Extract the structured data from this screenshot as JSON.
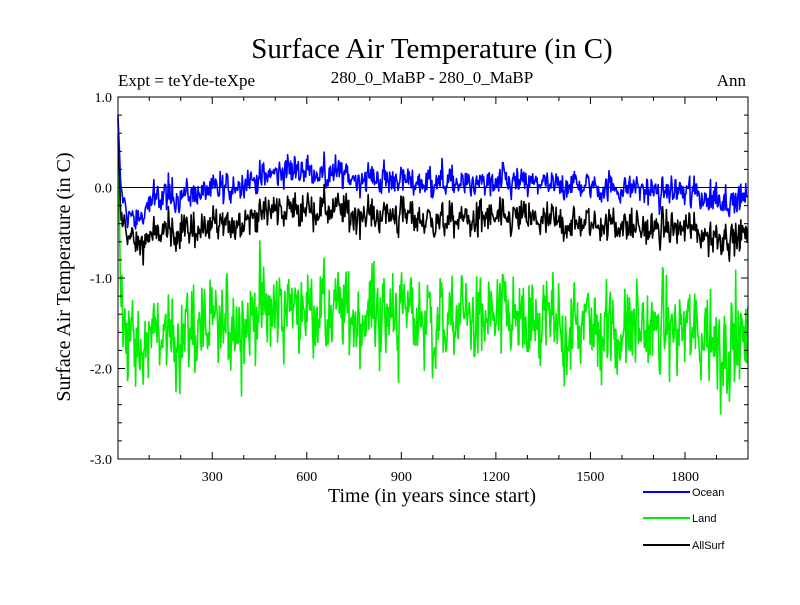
{
  "colors": {
    "ocean": "#0000ff",
    "land": "#00ee00",
    "allsurf": "#000000",
    "axis": "#000000",
    "background": "#ffffff"
  },
  "chart_data": {
    "type": "line",
    "title": "Surface Air Temperature (in C)",
    "subtitle_left": "Expt = teYde-teXpe",
    "subtitle_center": "280_0_MaBP - 280_0_MaBP",
    "subtitle_right": "Ann",
    "xlabel": "Time (in years since start)",
    "ylabel": "Surface Air Temperature (in C)",
    "xlim": [
      1,
      2000
    ],
    "ylim": [
      -3.0,
      1.0
    ],
    "xticks": [
      300,
      600,
      900,
      1200,
      1500,
      1800
    ],
    "xtick_labels": [
      "300",
      "600",
      "900",
      "1200",
      "1500",
      "1800"
    ],
    "yticks": [
      1.0,
      0.0,
      -1.0,
      -2.0,
      -3.0
    ],
    "ytick_labels": [
      "1.0",
      "0.0",
      "-1.0",
      "-2.0",
      "-3.0"
    ],
    "reference_line_y": 0.0,
    "legend_position": "bottom-right",
    "series": [
      {
        "name": "Ocean",
        "color": "#0000ff",
        "x": [
          1,
          10,
          30,
          60,
          100,
          150,
          200,
          250,
          300,
          350,
          400,
          450,
          500,
          550,
          600,
          650,
          700,
          750,
          800,
          850,
          900,
          950,
          1000,
          1050,
          1100,
          1150,
          1200,
          1250,
          1300,
          1350,
          1400,
          1450,
          1500,
          1550,
          1600,
          1650,
          1700,
          1750,
          1800,
          1850,
          1900,
          1950,
          2000
        ],
        "values": [
          0.8,
          0.0,
          -0.3,
          -0.4,
          -0.15,
          -0.1,
          -0.1,
          -0.05,
          -0.05,
          0.0,
          0.05,
          0.1,
          0.15,
          0.2,
          0.2,
          0.15,
          0.15,
          0.1,
          0.1,
          0.1,
          0.1,
          0.05,
          0.05,
          0.05,
          0.05,
          0.05,
          0.05,
          0.05,
          0.05,
          0.05,
          0.0,
          0.05,
          0.0,
          0.0,
          0.0,
          0.0,
          -0.05,
          -0.05,
          -0.05,
          -0.1,
          -0.1,
          -0.15,
          -0.1
        ]
      },
      {
        "name": "Land",
        "color": "#00ee00",
        "x": [
          1,
          10,
          30,
          60,
          100,
          150,
          200,
          250,
          300,
          350,
          400,
          450,
          500,
          550,
          600,
          650,
          700,
          750,
          800,
          850,
          900,
          950,
          1000,
          1050,
          1100,
          1150,
          1200,
          1250,
          1300,
          1350,
          1400,
          1450,
          1500,
          1550,
          1600,
          1650,
          1700,
          1750,
          1800,
          1850,
          1900,
          1950,
          2000
        ],
        "values": [
          0.6,
          -1.3,
          -1.6,
          -1.8,
          -1.7,
          -1.6,
          -1.6,
          -1.55,
          -1.6,
          -1.5,
          -1.45,
          -1.4,
          -1.35,
          -1.3,
          -1.3,
          -1.35,
          -1.4,
          -1.4,
          -1.35,
          -1.4,
          -1.4,
          -1.45,
          -1.45,
          -1.5,
          -1.45,
          -1.45,
          -1.5,
          -1.45,
          -1.5,
          -1.5,
          -1.55,
          -1.5,
          -1.5,
          -1.55,
          -1.55,
          -1.55,
          -1.6,
          -1.6,
          -1.6,
          -1.65,
          -1.7,
          -1.7,
          -1.7
        ]
      },
      {
        "name": "AllSurf",
        "color": "#000000",
        "x": [
          1,
          10,
          30,
          60,
          100,
          150,
          200,
          250,
          300,
          350,
          400,
          450,
          500,
          550,
          600,
          650,
          700,
          750,
          800,
          850,
          900,
          950,
          1000,
          1050,
          1100,
          1150,
          1200,
          1250,
          1300,
          1350,
          1400,
          1450,
          1500,
          1550,
          1600,
          1650,
          1700,
          1750,
          1800,
          1850,
          1900,
          1950,
          2000
        ],
        "values": [
          0.75,
          -0.35,
          -0.5,
          -0.65,
          -0.55,
          -0.5,
          -0.45,
          -0.45,
          -0.45,
          -0.4,
          -0.35,
          -0.3,
          -0.25,
          -0.25,
          -0.2,
          -0.25,
          -0.25,
          -0.3,
          -0.3,
          -0.3,
          -0.3,
          -0.35,
          -0.35,
          -0.35,
          -0.35,
          -0.35,
          -0.35,
          -0.35,
          -0.35,
          -0.35,
          -0.4,
          -0.4,
          -0.4,
          -0.4,
          -0.4,
          -0.45,
          -0.45,
          -0.45,
          -0.45,
          -0.5,
          -0.55,
          -0.55,
          -0.5
        ]
      }
    ],
    "noise_amplitude": [
      0.12,
      0.38,
      0.14
    ]
  }
}
